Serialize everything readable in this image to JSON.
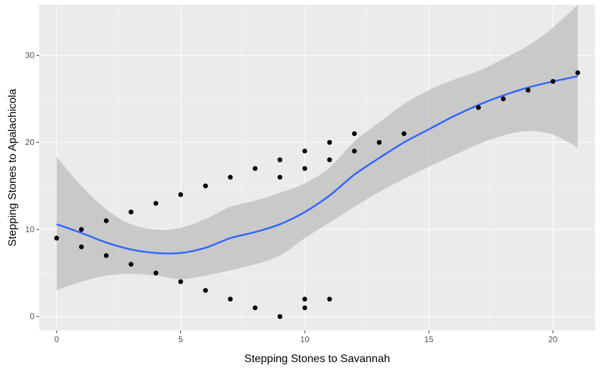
{
  "chart_data": {
    "type": "scatter",
    "title": "",
    "xlabel": "Stepping Stones to Savannah",
    "ylabel": "Stepping Stones to Apalachicola",
    "xlim": [
      -0.7,
      21.7
    ],
    "ylim": [
      -1.6,
      35.8
    ],
    "x_ticks": [
      0,
      5,
      10,
      15,
      20
    ],
    "y_ticks": [
      0,
      10,
      20,
      30
    ],
    "x_tick_labels": [
      "0",
      "5",
      "10",
      "15",
      "20"
    ],
    "y_tick_labels": [
      "0",
      "10",
      "20",
      "30"
    ],
    "grid": true,
    "legend": "none",
    "points": [
      {
        "x": 0,
        "y": 9
      },
      {
        "x": 1,
        "y": 10
      },
      {
        "x": 1,
        "y": 8
      },
      {
        "x": 2,
        "y": 11
      },
      {
        "x": 2,
        "y": 7
      },
      {
        "x": 3,
        "y": 12
      },
      {
        "x": 3,
        "y": 6
      },
      {
        "x": 4,
        "y": 13
      },
      {
        "x": 4,
        "y": 5
      },
      {
        "x": 5,
        "y": 14
      },
      {
        "x": 5,
        "y": 4
      },
      {
        "x": 6,
        "y": 15
      },
      {
        "x": 6,
        "y": 3
      },
      {
        "x": 7,
        "y": 16
      },
      {
        "x": 7,
        "y": 2
      },
      {
        "x": 8,
        "y": 17
      },
      {
        "x": 8,
        "y": 1
      },
      {
        "x": 9,
        "y": 18
      },
      {
        "x": 9,
        "y": 16
      },
      {
        "x": 9,
        "y": 0
      },
      {
        "x": 10,
        "y": 19
      },
      {
        "x": 10,
        "y": 17
      },
      {
        "x": 10,
        "y": 2
      },
      {
        "x": 10,
        "y": 1
      },
      {
        "x": 11,
        "y": 20
      },
      {
        "x": 11,
        "y": 18
      },
      {
        "x": 11,
        "y": 2
      },
      {
        "x": 12,
        "y": 21
      },
      {
        "x": 12,
        "y": 19
      },
      {
        "x": 13,
        "y": 20
      },
      {
        "x": 14,
        "y": 21
      },
      {
        "x": 17,
        "y": 24
      },
      {
        "x": 18,
        "y": 25
      },
      {
        "x": 19,
        "y": 26
      },
      {
        "x": 20,
        "y": 27
      },
      {
        "x": 21,
        "y": 28
      }
    ],
    "smooth": {
      "method": "loess",
      "x": [
        0,
        1,
        2,
        3,
        4,
        5,
        6,
        7,
        8,
        9,
        10,
        11,
        12,
        13,
        14,
        15,
        16,
        17,
        18,
        19,
        20,
        21
      ],
      "y": [
        10.6,
        9.6,
        8.5,
        7.7,
        7.3,
        7.3,
        7.9,
        9.0,
        9.7,
        10.6,
        12.0,
        13.9,
        16.3,
        18.2,
        20.0,
        21.5,
        23.0,
        24.3,
        25.4,
        26.3,
        27.0,
        27.6
      ],
      "lower": [
        3.0,
        4.0,
        4.7,
        4.9,
        4.7,
        4.3,
        4.7,
        5.3,
        6.0,
        7.0,
        9.0,
        10.8,
        12.6,
        14.3,
        15.8,
        17.2,
        18.5,
        19.8,
        20.8,
        21.3,
        20.9,
        19.4
      ],
      "upper": [
        18.3,
        15.0,
        12.3,
        10.6,
        10.0,
        10.2,
        11.2,
        12.6,
        13.3,
        14.2,
        15.3,
        17.1,
        20.1,
        22.3,
        24.4,
        26.0,
        27.2,
        28.2,
        29.6,
        31.1,
        33.2,
        35.8
      ]
    },
    "colors": {
      "panel_background": "#ebebeb",
      "grid_major": "#ffffff",
      "points": "#000000",
      "line": "#3366ff",
      "ribbon": "#bdbdbd",
      "tick_text": "#4d4d4d",
      "tick_mark": "#333333"
    }
  }
}
